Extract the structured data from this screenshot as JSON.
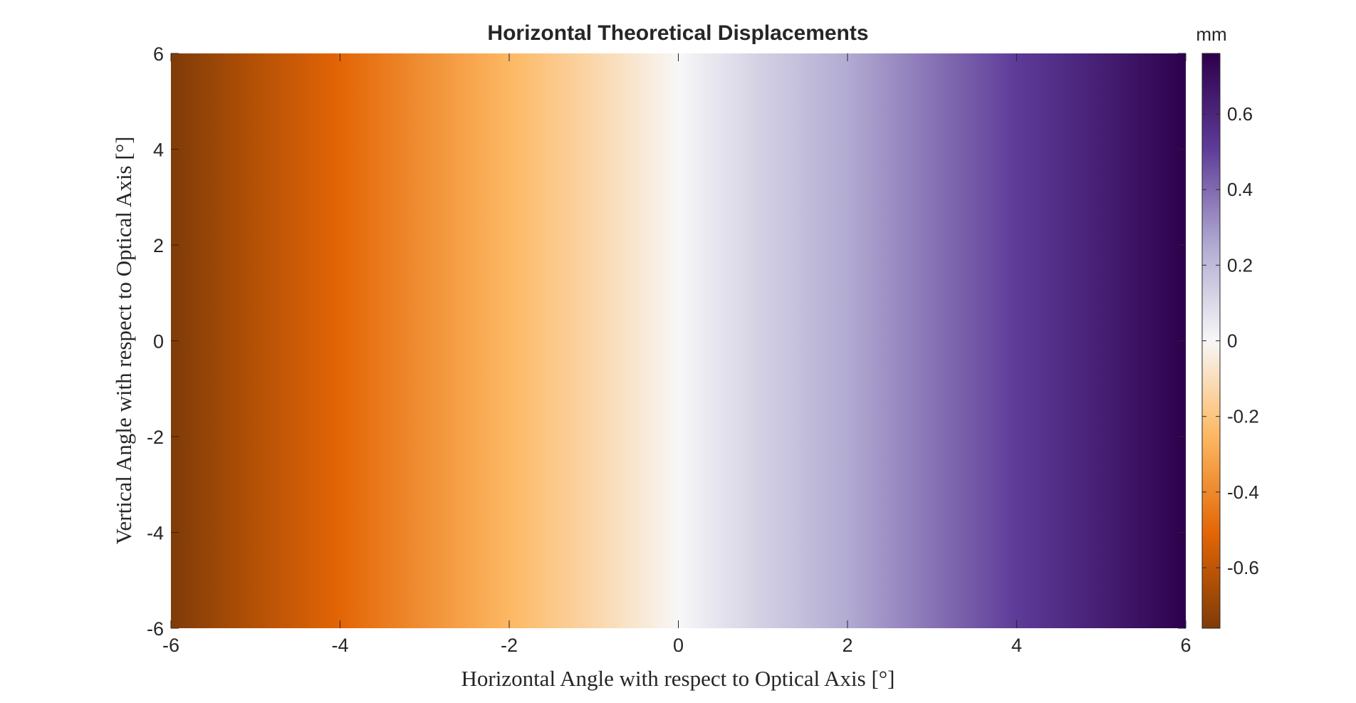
{
  "chart_data": {
    "type": "heatmap",
    "title": "Horizontal Theoretical Displacements",
    "xlabel": "Horizontal Angle with respect to Optical Axis [°]",
    "ylabel": "Vertical Angle with respect to Optical Axis [°]",
    "xlim": [
      -6,
      6
    ],
    "ylim": [
      -6,
      6
    ],
    "xticks": [
      -6,
      -4,
      -2,
      0,
      2,
      4,
      6
    ],
    "yticks": [
      -6,
      -4,
      -2,
      0,
      2,
      4,
      6
    ],
    "xtick_labels": [
      "-6",
      "-4",
      "-2",
      "0",
      "2",
      "4",
      "6"
    ],
    "ytick_labels": [
      "-6",
      "-4",
      "-2",
      "0",
      "2",
      "4",
      "6"
    ],
    "field_description": "displacement varies linearly with horizontal angle, constant along vertical angle",
    "x": [
      -6,
      -5,
      -4,
      -3,
      -2,
      -1,
      0,
      1,
      2,
      3,
      4,
      5,
      6
    ],
    "values_mm": [
      -0.76,
      -0.63,
      -0.51,
      -0.38,
      -0.25,
      -0.13,
      0,
      0.13,
      0.25,
      0.38,
      0.51,
      0.63,
      0.76
    ],
    "colorbar": {
      "unit_label": "mm",
      "clim": [
        -0.76,
        0.76
      ],
      "ticks": [
        -0.6,
        -0.4,
        -0.2,
        0,
        0.2,
        0.4,
        0.6
      ],
      "tick_labels": [
        "-0.6",
        "-0.4",
        "-0.2",
        "0",
        "0.2",
        "0.4",
        "0.6"
      ]
    },
    "colormap": [
      {
        "v": -0.76,
        "color": "#7f3b08"
      },
      {
        "v": -0.51,
        "color": "#e36505"
      },
      {
        "v": -0.25,
        "color": "#fdb863"
      },
      {
        "v": 0.0,
        "color": "#f7f7f7"
      },
      {
        "v": 0.25,
        "color": "#b2abd2"
      },
      {
        "v": 0.51,
        "color": "#5d3b98"
      },
      {
        "v": 0.76,
        "color": "#2d004b"
      }
    ],
    "grid": false
  }
}
